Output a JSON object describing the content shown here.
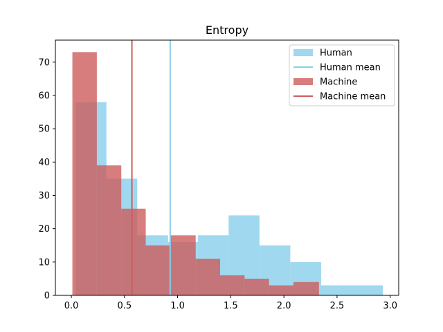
{
  "chart_data": {
    "type": "histogram",
    "title": "Entropy",
    "xlabel": "",
    "ylabel": "",
    "xlim": [
      -0.15,
      3.08
    ],
    "ylim": [
      0,
      76.6
    ],
    "xticks": [
      "0.0",
      "0.5",
      "1.0",
      "1.5",
      "2.0",
      "2.5",
      "3.0"
    ],
    "yticks": [
      "0",
      "10",
      "20",
      "30",
      "40",
      "50",
      "60",
      "70"
    ],
    "grid": false,
    "legend_position": "top-right",
    "series": [
      {
        "name": "Human",
        "kind": "bars",
        "color": "#87CEEB",
        "opacity": 0.8,
        "bins": [
          {
            "x0": 0.04,
            "x1": 0.33,
            "count": 58
          },
          {
            "x0": 0.33,
            "x1": 0.62,
            "count": 35
          },
          {
            "x0": 0.62,
            "x1": 0.91,
            "count": 18
          },
          {
            "x0": 0.91,
            "x1": 1.19,
            "count": 16
          },
          {
            "x0": 1.19,
            "x1": 1.48,
            "count": 18
          },
          {
            "x0": 1.48,
            "x1": 1.77,
            "count": 24
          },
          {
            "x0": 1.77,
            "x1": 2.06,
            "count": 15
          },
          {
            "x0": 2.06,
            "x1": 2.35,
            "count": 10
          },
          {
            "x0": 2.35,
            "x1": 2.93,
            "count": 3
          }
        ]
      },
      {
        "name": "Machine",
        "kind": "bars",
        "color": "#CD5C5C",
        "opacity": 0.8,
        "bins": [
          {
            "x0": 0.01,
            "x1": 0.24,
            "count": 73
          },
          {
            "x0": 0.24,
            "x1": 0.47,
            "count": 39
          },
          {
            "x0": 0.47,
            "x1": 0.7,
            "count": 26
          },
          {
            "x0": 0.7,
            "x1": 0.93,
            "count": 15
          },
          {
            "x0": 0.93,
            "x1": 1.17,
            "count": 18
          },
          {
            "x0": 1.17,
            "x1": 1.4,
            "count": 11
          },
          {
            "x0": 1.4,
            "x1": 1.63,
            "count": 6
          },
          {
            "x0": 1.63,
            "x1": 1.86,
            "count": 5
          },
          {
            "x0": 1.86,
            "x1": 2.09,
            "count": 3
          },
          {
            "x0": 2.09,
            "x1": 2.33,
            "count": 4
          }
        ]
      }
    ],
    "mean_lines": [
      {
        "name": "Human mean",
        "x": 0.93,
        "color": "#87CEEB"
      },
      {
        "name": "Machine mean",
        "x": 0.57,
        "color": "#CD5C5C"
      }
    ],
    "legend": [
      {
        "label": "Human",
        "swatch": "patch",
        "color": "#87CEEB",
        "opacity": 0.8
      },
      {
        "label": "Human mean",
        "swatch": "line",
        "color": "#87CEEB"
      },
      {
        "label": "Machine",
        "swatch": "patch",
        "color": "#CD5C5C",
        "opacity": 0.8
      },
      {
        "label": "Machine mean",
        "swatch": "line",
        "color": "#CD5C5C"
      }
    ]
  }
}
